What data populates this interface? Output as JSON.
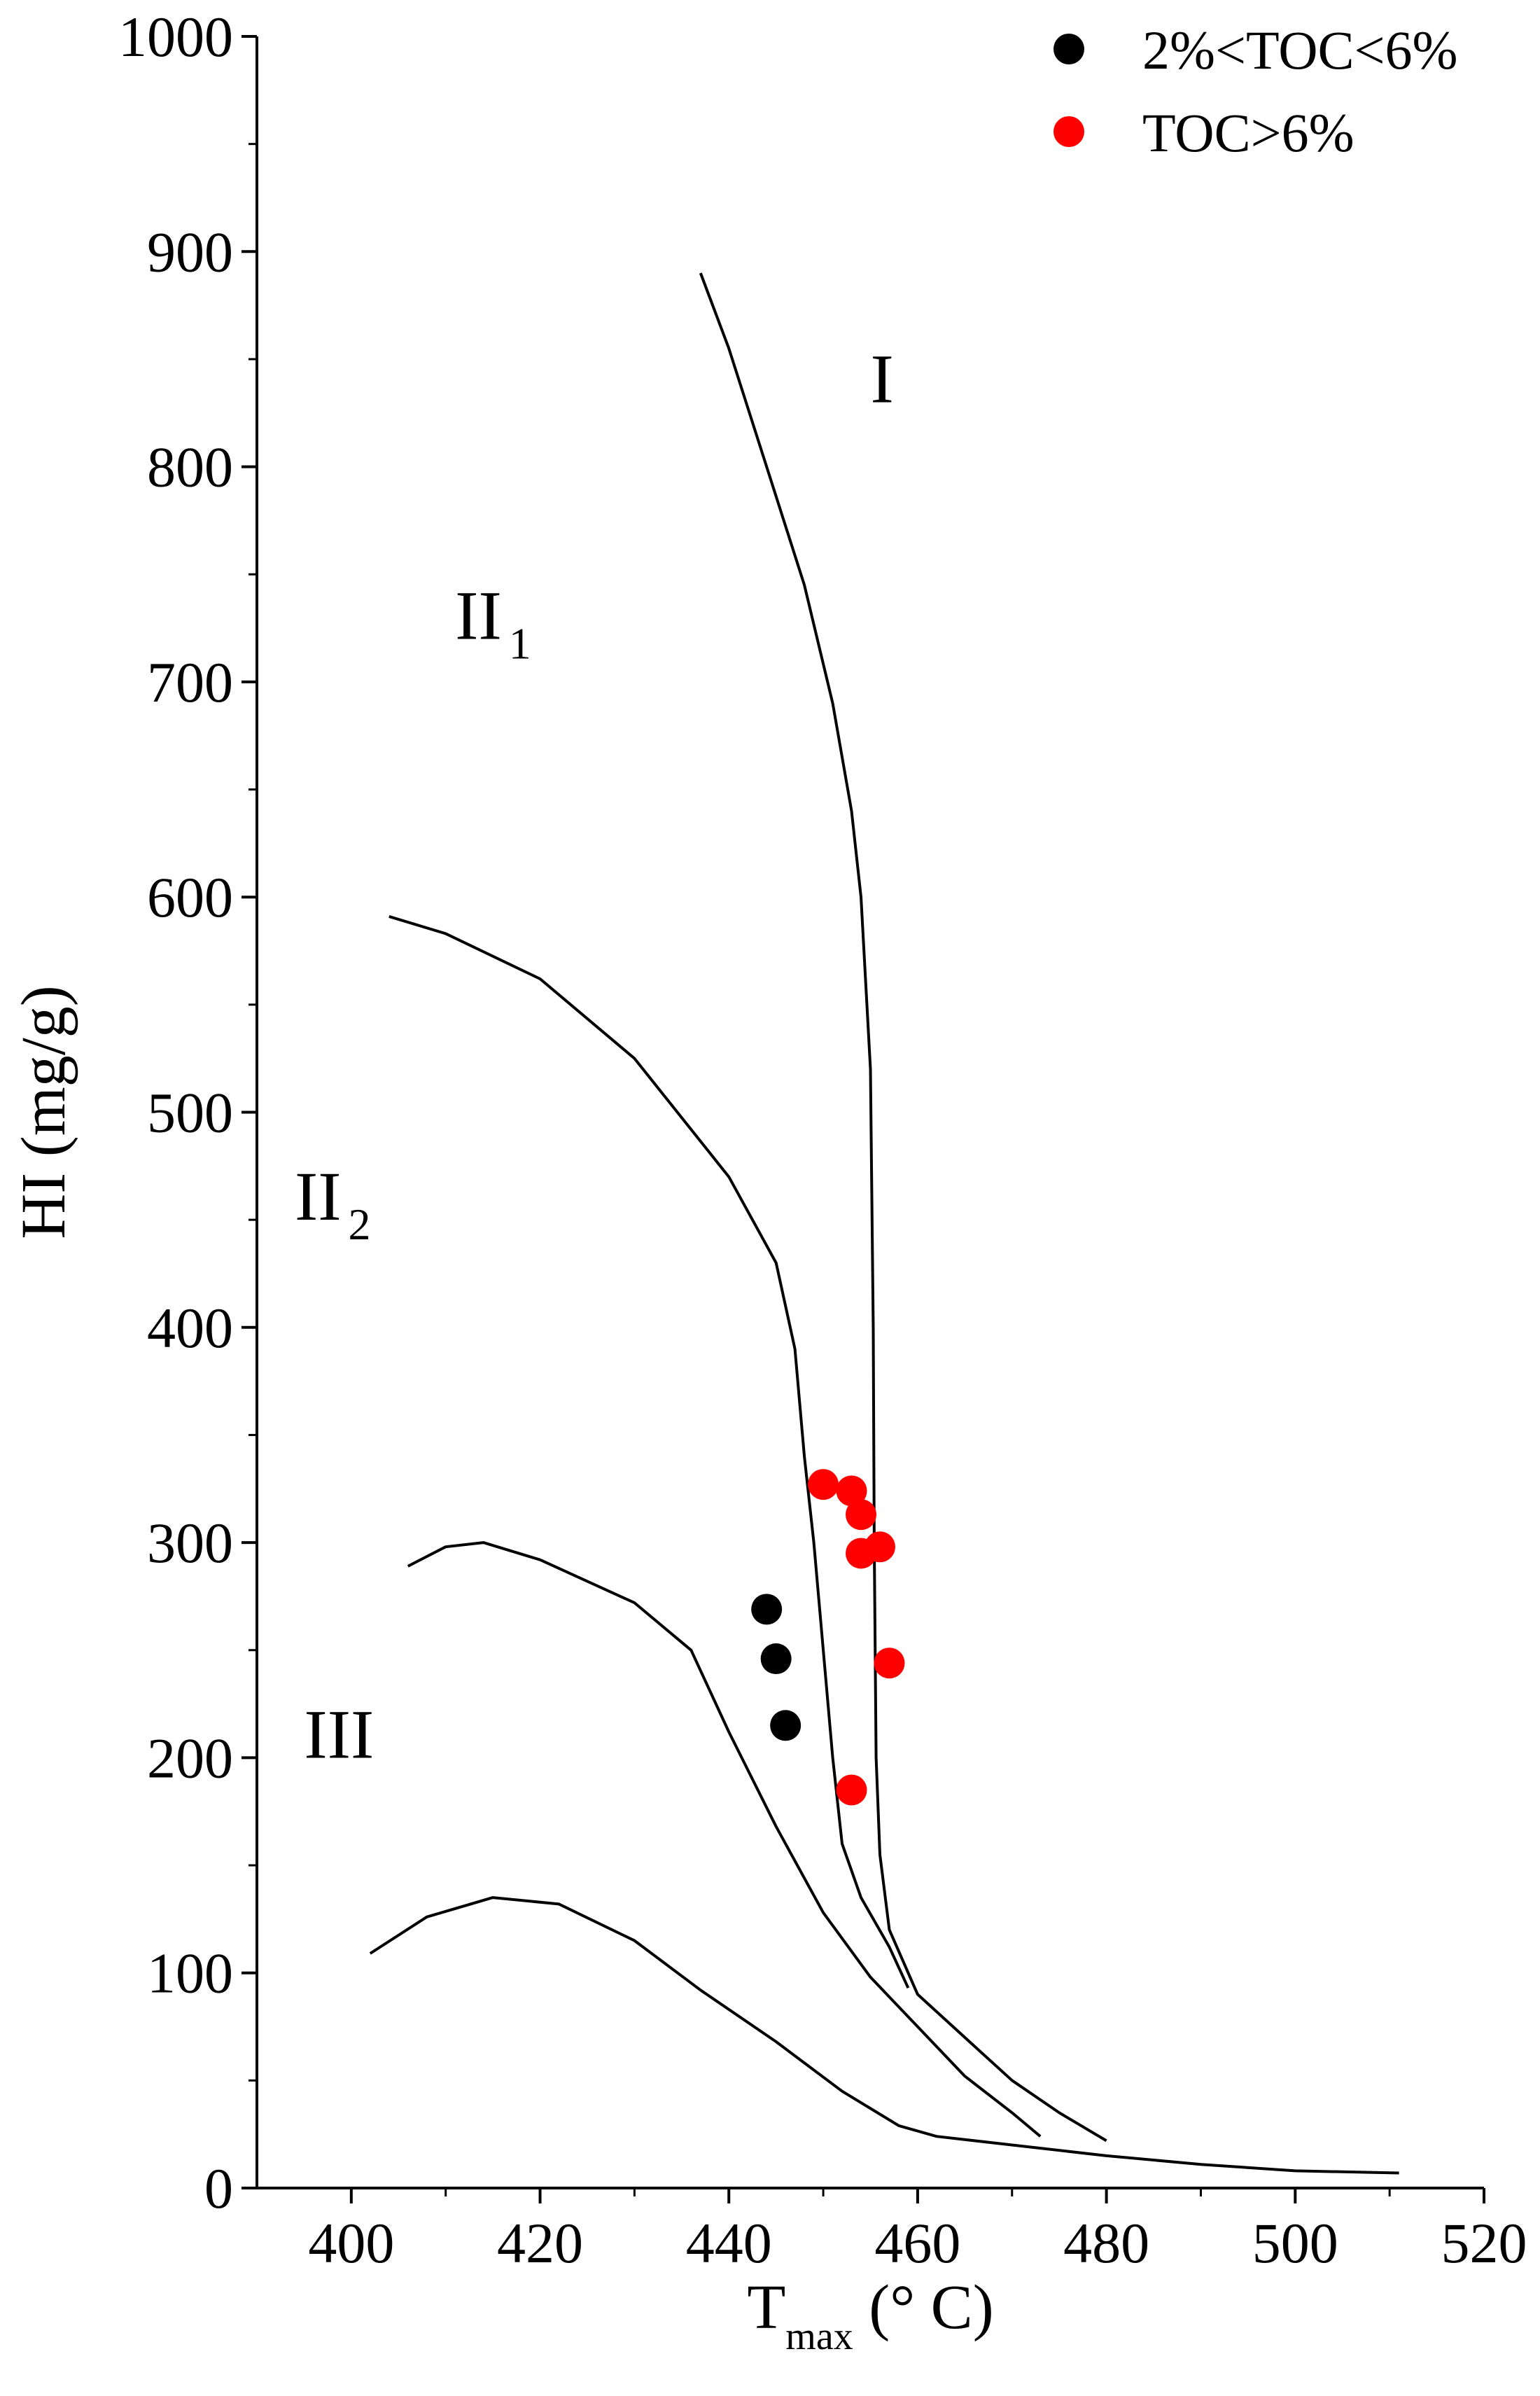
{
  "chart_data": {
    "type": "scatter",
    "title": "",
    "xlabel": {
      "main": "T",
      "sub": "max",
      "unit": "(° C)"
    },
    "ylabel": "HI (mg/g)",
    "xlim": [
      390,
      520
    ],
    "ylim": [
      0,
      1000
    ],
    "xticks": [
      400,
      420,
      440,
      460,
      480,
      500,
      520
    ],
    "yticks": [
      0,
      100,
      200,
      300,
      400,
      500,
      600,
      700,
      800,
      900,
      1000
    ],
    "grid": false,
    "legend_position": "top-right",
    "series": [
      {
        "name": "2%<TOC<6%",
        "color": "#000000",
        "points": [
          [
            444,
            269
          ],
          [
            445,
            246
          ],
          [
            446,
            215
          ]
        ]
      },
      {
        "name": "TOC>6%",
        "color": "#ff0000",
        "points": [
          [
            450,
            327
          ],
          [
            453,
            324
          ],
          [
            454,
            313
          ],
          [
            454,
            295
          ],
          [
            456,
            298
          ],
          [
            457,
            244
          ],
          [
            453,
            185
          ]
        ]
      }
    ],
    "boundary_curves": [
      {
        "name": "I / II1 boundary",
        "points": [
          [
            437,
            890
          ],
          [
            440,
            855
          ],
          [
            444,
            800
          ],
          [
            448,
            745
          ],
          [
            451,
            690
          ],
          [
            453,
            640
          ],
          [
            454,
            600
          ],
          [
            455,
            520
          ],
          [
            455.3,
            400
          ],
          [
            455.4,
            300
          ],
          [
            455.6,
            200
          ],
          [
            456,
            155
          ],
          [
            457,
            120
          ],
          [
            460,
            90
          ],
          [
            465,
            70
          ],
          [
            470,
            50
          ],
          [
            475,
            35
          ],
          [
            480,
            22
          ]
        ]
      },
      {
        "name": "II1 / II2 boundary",
        "points": [
          [
            404,
            591
          ],
          [
            410,
            583
          ],
          [
            420,
            562
          ],
          [
            430,
            525
          ],
          [
            440,
            470
          ],
          [
            445,
            430
          ],
          [
            447,
            390
          ],
          [
            448,
            340
          ],
          [
            449,
            300
          ],
          [
            450,
            250
          ],
          [
            451,
            200
          ],
          [
            452,
            160
          ],
          [
            454,
            135
          ],
          [
            457,
            112
          ],
          [
            459,
            93
          ]
        ]
      },
      {
        "name": "II2 / III boundary",
        "points": [
          [
            406,
            289
          ],
          [
            410,
            298
          ],
          [
            414,
            300
          ],
          [
            420,
            292
          ],
          [
            430,
            272
          ],
          [
            436,
            250
          ],
          [
            440,
            212
          ],
          [
            445,
            168
          ],
          [
            450,
            128
          ],
          [
            455,
            98
          ],
          [
            460,
            75
          ],
          [
            465,
            52
          ],
          [
            470,
            35
          ],
          [
            473,
            24
          ]
        ]
      },
      {
        "name": "III lower boundary",
        "points": [
          [
            402,
            109
          ],
          [
            408,
            126
          ],
          [
            415,
            135
          ],
          [
            422,
            132
          ],
          [
            430,
            115
          ],
          [
            437,
            92
          ],
          [
            445,
            68
          ],
          [
            452,
            45
          ],
          [
            458,
            29
          ],
          [
            462,
            24
          ],
          [
            470,
            20
          ],
          [
            480,
            15
          ],
          [
            490,
            11
          ],
          [
            500,
            8
          ],
          [
            511,
            7
          ]
        ]
      }
    ],
    "region_labels": [
      {
        "text": "I",
        "sub": "",
        "x": 455,
        "y": 830
      },
      {
        "text": "II",
        "sub": "1",
        "x": 411,
        "y": 720
      },
      {
        "text": "II",
        "sub": "2",
        "x": 394,
        "y": 450
      },
      {
        "text": "III",
        "sub": "",
        "x": 395,
        "y": 200
      }
    ]
  }
}
